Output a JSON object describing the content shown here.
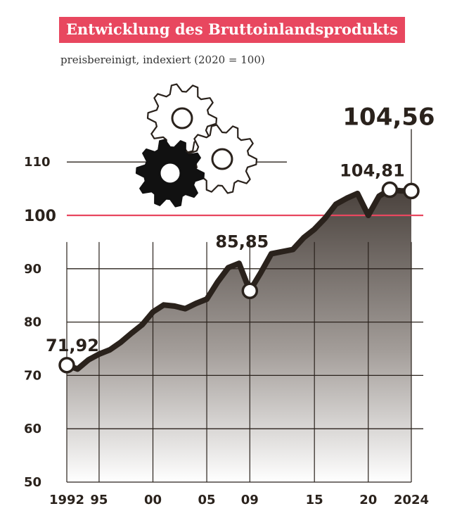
{
  "chart_data": {
    "type": "area",
    "title": "Entwicklung des Bruttoinlandsprodukts",
    "subtitle": "preisbereinigt, indexiert (2020 = 100)",
    "x": [
      1992,
      1993,
      1994,
      1995,
      1996,
      1997,
      1998,
      1999,
      2000,
      2001,
      2002,
      2003,
      2004,
      2005,
      2006,
      2007,
      2008,
      2009,
      2010,
      2011,
      2012,
      2013,
      2014,
      2015,
      2016,
      2017,
      2018,
      2019,
      2020,
      2021,
      2022,
      2023,
      2024
    ],
    "series": [
      {
        "values": [
          71.92,
          71.2,
          72.9,
          74.0,
          74.8,
          76.2,
          77.9,
          79.5,
          81.9,
          83.2,
          83.0,
          82.5,
          83.5,
          84.3,
          87.5,
          90.2,
          91.0,
          85.85,
          89.2,
          92.8,
          93.2,
          93.6,
          95.8,
          97.4,
          99.5,
          102.1,
          103.2,
          104.1,
          100.0,
          103.6,
          104.81,
          104.6,
          104.56
        ]
      }
    ],
    "ylim": [
      50,
      115
    ],
    "xlim": [
      1992,
      2024
    ],
    "yticks": [
      50,
      60,
      70,
      80,
      90,
      100,
      110
    ],
    "ytick_labels": [
      "50",
      "60",
      "70",
      "80",
      "90",
      "100",
      "110"
    ],
    "xticks": [
      1992,
      1995,
      2000,
      2005,
      2009,
      2015,
      2020,
      2024
    ],
    "xtick_labels": [
      "1992",
      "95",
      "00",
      "05",
      "09",
      "15",
      "20",
      "2024"
    ],
    "reference_line": {
      "y": 100,
      "color": "#e8475f"
    },
    "annotations": [
      {
        "x": 1992,
        "y": 71.92,
        "label": "71,92"
      },
      {
        "x": 2009,
        "y": 85.85,
        "label": "85,85"
      },
      {
        "x": 2022,
        "y": 104.81,
        "label": "104,81"
      },
      {
        "x": 2024,
        "y": 104.56,
        "label": "104,56"
      }
    ],
    "colors": {
      "line": "#2a221c",
      "fill_top": "#4a423d",
      "fill_bottom": "#ffffff",
      "grid": "#2a221c",
      "title_bg": "#e8475f"
    }
  },
  "decoration": {
    "icon": "gears-icon"
  }
}
